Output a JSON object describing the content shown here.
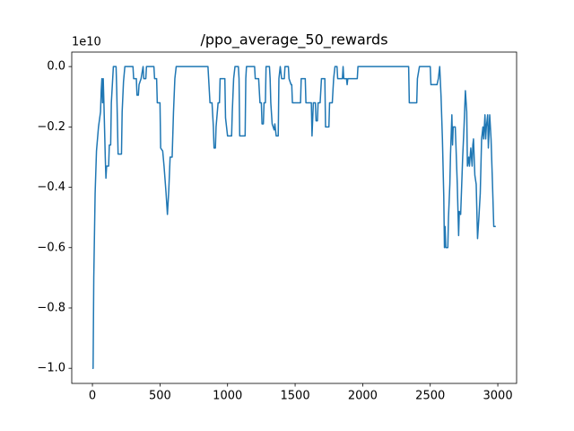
{
  "chart_data": {
    "type": "line",
    "title": "/ppo_average_50_rewards",
    "y_offset_label": "1e10",
    "x": [
      0,
      5,
      10,
      20,
      30,
      45,
      60,
      65,
      70,
      75,
      80,
      85,
      95,
      100,
      105,
      120,
      125,
      135,
      140,
      150,
      155,
      175,
      180,
      190,
      215,
      220,
      230,
      240,
      300,
      305,
      325,
      330,
      340,
      345,
      360,
      375,
      380,
      395,
      400,
      455,
      460,
      475,
      480,
      500,
      505,
      520,
      530,
      545,
      555,
      565,
      575,
      590,
      600,
      610,
      620,
      855,
      860,
      870,
      885,
      895,
      900,
      910,
      915,
      930,
      940,
      945,
      980,
      985,
      1000,
      1030,
      1035,
      1045,
      1055,
      1080,
      1085,
      1090,
      1130,
      1135,
      1140,
      1200,
      1205,
      1230,
      1240,
      1250,
      1255,
      1265,
      1270,
      1280,
      1285,
      1310,
      1315,
      1320,
      1330,
      1345,
      1350,
      1360,
      1375,
      1380,
      1390,
      1400,
      1420,
      1425,
      1450,
      1455,
      1470,
      1475,
      1480,
      1540,
      1545,
      1575,
      1580,
      1620,
      1625,
      1635,
      1650,
      1655,
      1665,
      1670,
      1685,
      1695,
      1720,
      1725,
      1750,
      1755,
      1775,
      1780,
      1785,
      1795,
      1810,
      1815,
      1850,
      1855,
      1860,
      1880,
      1885,
      1890,
      1960,
      1965,
      2340,
      2345,
      2400,
      2405,
      2420,
      2500,
      2505,
      2550,
      2560,
      2570,
      2580,
      2590,
      2600,
      2605,
      2610,
      2615,
      2630,
      2635,
      2645,
      2650,
      2660,
      2665,
      2670,
      2685,
      2690,
      2700,
      2710,
      2715,
      2725,
      2740,
      2750,
      2760,
      2770,
      2775,
      2785,
      2790,
      2800,
      2810,
      2815,
      2820,
      2830,
      2840,
      2850,
      2860,
      2870,
      2880,
      2890,
      2895,
      2905,
      2910,
      2915,
      2925,
      2930,
      2940,
      2950,
      2960,
      2970,
      2985
    ],
    "series": [
      {
        "color": "#1f77b4",
        "values": [
          -1.0,
          -1.0,
          -0.7,
          -0.42,
          -0.28,
          -0.2,
          -0.15,
          -0.08,
          -0.04,
          -0.12,
          -0.04,
          -0.12,
          -0.3,
          -0.37,
          -0.33,
          -0.33,
          -0.26,
          -0.26,
          -0.12,
          -0.04,
          0,
          0,
          -0.08,
          -0.29,
          -0.29,
          -0.15,
          -0.05,
          0,
          0,
          -0.04,
          -0.04,
          -0.095,
          -0.095,
          -0.06,
          -0.04,
          0,
          -0.04,
          -0.04,
          0,
          0,
          -0.04,
          -0.04,
          -0.12,
          -0.12,
          -0.27,
          -0.28,
          -0.33,
          -0.42,
          -0.49,
          -0.41,
          -0.3,
          -0.3,
          -0.15,
          -0.04,
          0,
          0,
          -0.04,
          -0.12,
          -0.12,
          -0.2,
          -0.27,
          -0.27,
          -0.2,
          -0.12,
          -0.12,
          -0.04,
          -0.04,
          -0.17,
          -0.23,
          -0.23,
          -0.15,
          -0.04,
          0,
          0,
          -0.04,
          -0.23,
          -0.23,
          -0.04,
          0,
          0,
          -0.04,
          -0.04,
          -0.12,
          -0.12,
          -0.19,
          -0.19,
          -0.12,
          -0.12,
          0,
          0,
          -0.04,
          -0.12,
          -0.19,
          -0.21,
          -0.19,
          -0.23,
          -0.23,
          -0.04,
          0,
          -0.04,
          -0.04,
          0,
          0,
          -0.04,
          -0.06,
          -0.06,
          -0.12,
          -0.12,
          -0.04,
          -0.04,
          -0.12,
          -0.12,
          -0.23,
          -0.12,
          -0.12,
          -0.18,
          -0.18,
          -0.12,
          -0.12,
          -0.04,
          -0.04,
          -0.2,
          -0.2,
          -0.12,
          -0.12,
          -0.08,
          -0.04,
          0,
          0,
          -0.04,
          -0.04,
          0,
          -0.04,
          -0.04,
          -0.06,
          -0.04,
          -0.04,
          0,
          0,
          -0.12,
          -0.12,
          -0.04,
          0,
          0,
          -0.06,
          -0.06,
          -0.04,
          0,
          -0.1,
          -0.24,
          -0.43,
          -0.6,
          -0.53,
          -0.6,
          -0.6,
          -0.5,
          -0.39,
          -0.29,
          -0.16,
          -0.26,
          -0.2,
          -0.2,
          -0.26,
          -0.39,
          -0.56,
          -0.48,
          -0.49,
          -0.3,
          -0.2,
          -0.08,
          -0.15,
          -0.33,
          -0.3,
          -0.33,
          -0.27,
          -0.33,
          -0.26,
          -0.24,
          -0.36,
          -0.39,
          -0.57,
          -0.5,
          -0.42,
          -0.24,
          -0.2,
          -0.24,
          -0.16,
          -0.24,
          -0.2,
          -0.16,
          -0.27,
          -0.16,
          -0.24,
          -0.38,
          -0.53,
          -0.53
        ]
      }
    ],
    "xlim": [
      -153,
      3139
    ],
    "xticks": [
      0,
      500,
      1000,
      1500,
      2000,
      2500,
      3000
    ],
    "ylim": [
      -1.05,
      0.048
    ],
    "yticks": [
      {
        "value": -1.0,
        "label": "−1.0"
      },
      {
        "value": -0.8,
        "label": "−0.8"
      },
      {
        "value": -0.6,
        "label": "−0.6"
      },
      {
        "value": -0.4,
        "label": "−0.4"
      },
      {
        "value": -0.2,
        "label": "−0.2"
      },
      {
        "value": 0,
        "label": "0.0"
      }
    ]
  }
}
